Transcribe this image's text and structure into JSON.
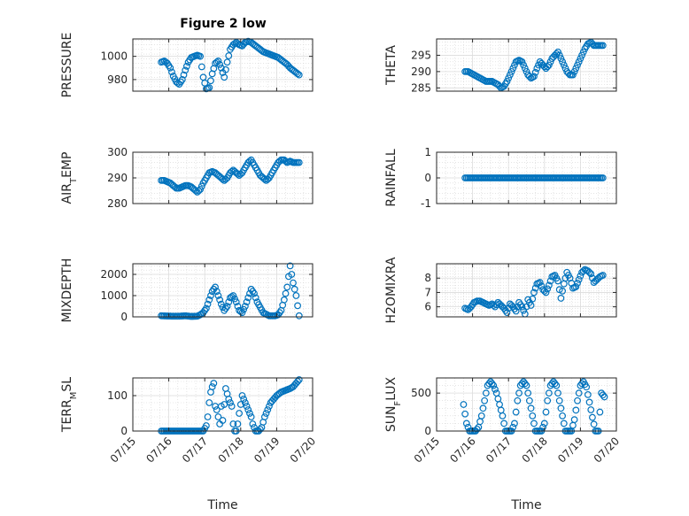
{
  "figure": {
    "title": "Figure 2 low",
    "marker_color": "#0072BD",
    "xlim": [
      "2017-07-15",
      "2017-07-20"
    ],
    "xtick_labels": [
      "07/15",
      "07/16",
      "07/17",
      "07/18",
      "07/19",
      "07/20"
    ]
  },
  "chart_data": [
    {
      "type": "scatter",
      "ylabel": "PRESSURE",
      "ylim": [
        970,
        1015
      ],
      "yticks": [
        980,
        1000
      ],
      "grid": true,
      "x": [
        "07/15 19:00",
        "07/15 21:00",
        "07/15 23:00",
        "07/16 01:00",
        "07/16 03:00",
        "07/16 05:00",
        "07/16 07:00",
        "07/16 09:00",
        "07/16 11:00",
        "07/16 13:00",
        "07/16 15:00",
        "07/16 17:00",
        "07/16 19:00",
        "07/16 21:00",
        "07/16 23:00",
        "07/17 01:00",
        "07/17 03:00",
        "07/17 05:00",
        "07/17 07:00",
        "07/17 09:00",
        "07/17 11:00",
        "07/17 13:00",
        "07/17 15:00",
        "07/17 17:00",
        "07/17 19:00",
        "07/17 21:00",
        "07/17 23:00",
        "07/18 01:00",
        "07/18 03:00",
        "07/18 05:00",
        "07/18 07:00",
        "07/18 09:00",
        "07/18 11:00",
        "07/18 13:00",
        "07/18 15:00",
        "07/18 17:00",
        "07/18 19:00",
        "07/18 21:00",
        "07/18 23:00",
        "07/19 01:00",
        "07/19 03:00",
        "07/19 05:00",
        "07/19 07:00",
        "07/19 09:00",
        "07/19 11:00",
        "07/19 13:00",
        "07/19 15:00"
      ],
      "values": [
        995,
        996,
        994,
        990,
        983,
        978,
        976,
        980,
        988,
        995,
        999,
        1000,
        1001,
        1000,
        982,
        972,
        973,
        985,
        994,
        996,
        990,
        982,
        995,
        1006,
        1010,
        1012,
        1010,
        1009,
        1012,
        1013,
        1012,
        1010,
        1008,
        1006,
        1004,
        1003,
        1002,
        1001,
        1000,
        999,
        997,
        995,
        993,
        990,
        988,
        986,
        984
      ]
    },
    {
      "type": "scatter",
      "ylabel": "THETA",
      "ylim": [
        284,
        300
      ],
      "yticks": [
        285,
        290,
        295
      ],
      "grid": true,
      "x": [
        "07/15 19:00",
        "07/15 21:00",
        "07/15 23:00",
        "07/16 01:00",
        "07/16 03:00",
        "07/16 05:00",
        "07/16 07:00",
        "07/16 09:00",
        "07/16 11:00",
        "07/16 13:00",
        "07/16 15:00",
        "07/16 17:00",
        "07/16 19:00",
        "07/16 21:00",
        "07/16 23:00",
        "07/17 01:00",
        "07/17 03:00",
        "07/17 05:00",
        "07/17 07:00",
        "07/17 09:00",
        "07/17 11:00",
        "07/17 13:00",
        "07/17 15:00",
        "07/17 17:00",
        "07/17 19:00",
        "07/17 21:00",
        "07/17 23:00",
        "07/18 01:00",
        "07/18 03:00",
        "07/18 05:00",
        "07/18 07:00",
        "07/18 09:00",
        "07/18 11:00",
        "07/18 13:00",
        "07/18 15:00",
        "07/18 17:00",
        "07/18 19:00",
        "07/18 21:00",
        "07/18 23:00",
        "07/19 01:00",
        "07/19 03:00",
        "07/19 05:00",
        "07/19 07:00",
        "07/19 09:00",
        "07/19 11:00",
        "07/19 13:00",
        "07/19 15:00"
      ],
      "values": [
        290,
        290,
        289.5,
        289,
        288.5,
        288,
        287.5,
        287,
        287,
        287,
        286.5,
        286,
        285,
        285.5,
        287,
        289,
        291,
        293,
        293.5,
        293,
        291,
        289,
        288,
        288.5,
        291,
        293,
        292,
        291,
        292,
        294,
        295,
        296,
        294,
        292,
        290,
        289,
        289,
        291,
        293,
        295,
        297,
        298.5,
        299,
        298,
        298,
        298,
        298
      ]
    },
    {
      "type": "scatter",
      "ylabel": "AIR_TEMP",
      "ylim": [
        280,
        300
      ],
      "yticks": [
        280,
        290,
        300
      ],
      "grid": true,
      "x": [
        "07/15 19:00",
        "07/15 21:00",
        "07/15 23:00",
        "07/16 01:00",
        "07/16 03:00",
        "07/16 05:00",
        "07/16 07:00",
        "07/16 09:00",
        "07/16 11:00",
        "07/16 13:00",
        "07/16 15:00",
        "07/16 17:00",
        "07/16 19:00",
        "07/16 21:00",
        "07/16 23:00",
        "07/17 01:00",
        "07/17 03:00",
        "07/17 05:00",
        "07/17 07:00",
        "07/17 09:00",
        "07/17 11:00",
        "07/17 13:00",
        "07/17 15:00",
        "07/17 17:00",
        "07/17 19:00",
        "07/17 21:00",
        "07/17 23:00",
        "07/18 01:00",
        "07/18 03:00",
        "07/18 05:00",
        "07/18 07:00",
        "07/18 09:00",
        "07/18 11:00",
        "07/18 13:00",
        "07/18 15:00",
        "07/18 17:00",
        "07/18 19:00",
        "07/18 21:00",
        "07/18 23:00",
        "07/19 01:00",
        "07/19 03:00",
        "07/19 05:00",
        "07/19 07:00",
        "07/19 09:00",
        "07/19 11:00",
        "07/19 13:00",
        "07/19 15:00"
      ],
      "values": [
        289,
        289,
        288.5,
        288,
        287,
        286,
        286,
        286.5,
        287,
        287,
        286.5,
        285.5,
        284.5,
        285.5,
        288,
        290,
        292,
        292.5,
        292,
        291,
        290,
        289,
        290,
        292,
        293,
        292,
        291,
        292,
        294,
        296,
        297,
        295,
        293,
        291,
        290,
        289,
        290,
        292,
        294,
        296,
        297,
        297,
        296,
        296.5,
        296,
        296,
        296
      ]
    },
    {
      "type": "scatter",
      "ylabel": "RAINFALL",
      "ylim": [
        -1,
        1
      ],
      "yticks": [
        -1,
        0,
        1
      ],
      "grid": true,
      "x": [
        "07/15 19:00",
        "07/19 15:00"
      ],
      "values": [
        0,
        0
      ],
      "note": "dense constant series at 0"
    },
    {
      "type": "scatter",
      "ylabel": "MIXDEPTH",
      "ylim": [
        0,
        2500
      ],
      "yticks": [
        0,
        1000,
        2000
      ],
      "grid": true,
      "x": [
        "07/15 19:00",
        "07/15 23:00",
        "07/16 03:00",
        "07/16 07:00",
        "07/16 11:00",
        "07/16 15:00",
        "07/16 19:00",
        "07/16 21:00",
        "07/16 23:00",
        "07/17 01:00",
        "07/17 03:00",
        "07/17 05:00",
        "07/17 07:00",
        "07/17 09:00",
        "07/17 11:00",
        "07/17 13:00",
        "07/17 15:00",
        "07/17 17:00",
        "07/17 19:00",
        "07/17 21:00",
        "07/17 23:00",
        "07/18 01:00",
        "07/18 03:00",
        "07/18 05:00",
        "07/18 07:00",
        "07/18 09:00",
        "07/18 11:00",
        "07/18 15:00",
        "07/18 19:00",
        "07/18 23:00",
        "07/19 01:00",
        "07/19 03:00",
        "07/19 05:00",
        "07/19 07:00",
        "07/19 09:00",
        "07/19 11:00",
        "07/19 13:00",
        "07/19 15:00"
      ],
      "values": [
        50,
        40,
        30,
        30,
        50,
        20,
        30,
        100,
        200,
        400,
        800,
        1200,
        1400,
        1000,
        600,
        300,
        500,
        900,
        1000,
        700,
        300,
        200,
        500,
        900,
        1300,
        1100,
        700,
        200,
        50,
        50,
        100,
        300,
        800,
        1400,
        2400,
        1600,
        1000,
        50
      ]
    },
    {
      "type": "scatter",
      "ylabel": "H2OMIXRA",
      "ylim": [
        5.3,
        9.0
      ],
      "yticks": [
        6,
        7,
        8
      ],
      "grid": true,
      "x": [
        "07/15 19:00",
        "07/15 21:00",
        "07/15 23:00",
        "07/16 01:00",
        "07/16 03:00",
        "07/16 05:00",
        "07/16 07:00",
        "07/16 09:00",
        "07/16 11:00",
        "07/16 13:00",
        "07/16 15:00",
        "07/16 17:00",
        "07/16 19:00",
        "07/16 21:00",
        "07/16 23:00",
        "07/17 01:00",
        "07/17 03:00",
        "07/17 05:00",
        "07/17 07:00",
        "07/17 09:00",
        "07/17 11:00",
        "07/17 13:00",
        "07/17 15:00",
        "07/17 17:00",
        "07/17 19:00",
        "07/17 21:00",
        "07/17 23:00",
        "07/18 01:00",
        "07/18 03:00",
        "07/18 05:00",
        "07/18 07:00",
        "07/18 09:00",
        "07/18 11:00",
        "07/18 13:00",
        "07/18 15:00",
        "07/18 17:00",
        "07/18 19:00",
        "07/18 21:00",
        "07/18 23:00",
        "07/19 01:00",
        "07/19 03:00",
        "07/19 05:00",
        "07/19 07:00",
        "07/19 09:00",
        "07/19 11:00",
        "07/19 13:00",
        "07/19 15:00"
      ],
      "values": [
        5.9,
        5.8,
        6.0,
        6.3,
        6.4,
        6.4,
        6.3,
        6.2,
        6.1,
        6.2,
        6.0,
        6.3,
        6.1,
        5.9,
        5.6,
        6.2,
        6.0,
        5.7,
        6.3,
        6.0,
        5.5,
        6.5,
        6.1,
        7.0,
        7.6,
        7.7,
        7.2,
        7.0,
        7.5,
        8.1,
        8.2,
        7.8,
        6.6,
        7.6,
        8.4,
        8.0,
        7.3,
        7.4,
        7.9,
        8.4,
        8.6,
        8.5,
        8.3,
        7.7,
        7.9,
        8.1,
        8.2
      ]
    },
    {
      "type": "scatter",
      "ylabel": "TERR_MSL",
      "ylim": [
        0,
        150
      ],
      "yticks": [
        0,
        100
      ],
      "grid": true,
      "x": [
        "07/15 19:00",
        "07/16 01:00",
        "07/16 07:00",
        "07/16 13:00",
        "07/16 19:00",
        "07/16 23:00",
        "07/17 01:00",
        "07/17 02:00",
        "07/17 03:00",
        "07/17 04:00",
        "07/17 05:00",
        "07/17 06:00",
        "07/17 07:00",
        "07/17 08:00",
        "07/17 09:00",
        "07/17 10:00",
        "07/17 11:00",
        "07/17 12:00",
        "07/17 14:00",
        "07/17 16:00",
        "07/17 18:00",
        "07/17 19:00",
        "07/17 20:00",
        "07/17 21:00",
        "07/17 22:00",
        "07/17 23:00",
        "07/18 01:00",
        "07/18 03:00",
        "07/18 05:00",
        "07/18 07:00",
        "07/18 08:00",
        "07/18 10:00",
        "07/18 12:00",
        "07/18 14:00",
        "07/18 16:00",
        "07/18 18:00",
        "07/18 20:00",
        "07/18 22:00",
        "07/19 00:00",
        "07/19 03:00",
        "07/19 06:00",
        "07/19 09:00",
        "07/19 11:00",
        "07/19 13:00",
        "07/19 15:00"
      ],
      "values": [
        0,
        0,
        0,
        0,
        0,
        0,
        15,
        40,
        80,
        110,
        125,
        135,
        70,
        60,
        40,
        20,
        70,
        30,
        120,
        90,
        70,
        20,
        0,
        0,
        20,
        50,
        100,
        80,
        60,
        40,
        20,
        0,
        0,
        10,
        40,
        60,
        80,
        90,
        100,
        110,
        115,
        120,
        125,
        135,
        145
      ]
    },
    {
      "type": "scatter",
      "ylabel": "SUN_FLUX",
      "ylim": [
        0,
        700
      ],
      "yticks": [
        0,
        500
      ],
      "grid": true,
      "x": [
        "07/15 18:00",
        "07/15 20:00",
        "07/15 22:00",
        "07/16 00:00",
        "07/16 02:00",
        "07/16 04:00",
        "07/16 06:00",
        "07/16 08:00",
        "07/16 10:00",
        "07/16 12:00",
        "07/16 14:00",
        "07/16 16:00",
        "07/16 18:00",
        "07/16 20:00",
        "07/16 22:00",
        "07/17 00:00",
        "07/17 02:00",
        "07/17 04:00",
        "07/17 06:00",
        "07/17 08:00",
        "07/17 10:00",
        "07/17 12:00",
        "07/17 14:00",
        "07/17 16:00",
        "07/17 18:00",
        "07/17 20:00",
        "07/17 22:00",
        "07/18 00:00",
        "07/18 02:00",
        "07/18 04:00",
        "07/18 06:00",
        "07/18 08:00",
        "07/18 10:00",
        "07/18 12:00",
        "07/18 14:00",
        "07/18 16:00",
        "07/18 18:00",
        "07/18 20:00",
        "07/18 22:00",
        "07/19 00:00",
        "07/19 02:00",
        "07/19 04:00",
        "07/19 06:00",
        "07/19 08:00",
        "07/19 10:00",
        "07/19 12:00",
        "07/19 14:00",
        "07/19 16:00"
      ],
      "values": [
        350,
        100,
        0,
        0,
        0,
        50,
        200,
        400,
        600,
        650,
        600,
        500,
        350,
        200,
        0,
        0,
        0,
        100,
        400,
        600,
        650,
        600,
        400,
        200,
        0,
        0,
        0,
        100,
        400,
        600,
        650,
        600,
        400,
        200,
        0,
        0,
        0,
        150,
        400,
        600,
        650,
        580,
        380,
        180,
        0,
        0,
        500,
        450
      ]
    }
  ]
}
